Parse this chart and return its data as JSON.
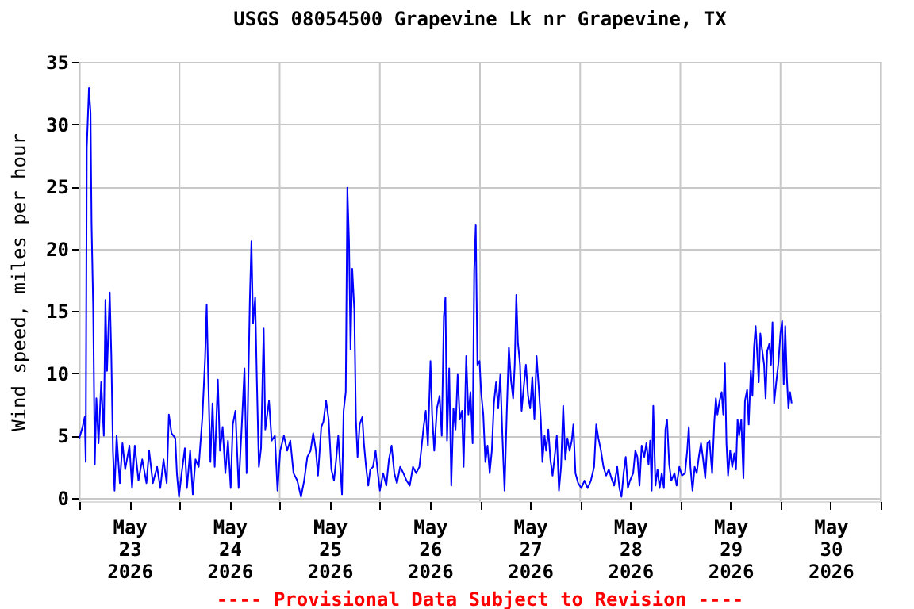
{
  "chart_data": {
    "type": "line",
    "title": "USGS 08054500 Grapevine Lk nr Grapevine, TX",
    "ylabel": "Wind speed, miles per hour",
    "annotations": [
      "---- Provisional Data Subject to Revision ----"
    ],
    "xlim": [
      "2026-05-23T00:00",
      "2026-05-31T00:00"
    ],
    "xticks": [
      {
        "value": "2026-05-23T00:00",
        "label": null
      },
      {
        "value": "2026-05-23T12:00",
        "label": "May 23 2026"
      },
      {
        "value": "2026-05-24T00:00",
        "label": null
      },
      {
        "value": "2026-05-24T12:00",
        "label": "May 24 2026"
      },
      {
        "value": "2026-05-25T00:00",
        "label": null
      },
      {
        "value": "2026-05-25T12:00",
        "label": "May 25 2026"
      },
      {
        "value": "2026-05-26T00:00",
        "label": null
      },
      {
        "value": "2026-05-26T12:00",
        "label": "May 26 2026"
      },
      {
        "value": "2026-05-27T00:00",
        "label": null
      },
      {
        "value": "2026-05-27T12:00",
        "label": "May 27 2026"
      },
      {
        "value": "2026-05-28T00:00",
        "label": null
      },
      {
        "value": "2026-05-28T12:00",
        "label": "May 28 2026"
      },
      {
        "value": "2026-05-29T00:00",
        "label": null
      },
      {
        "value": "2026-05-29T12:00",
        "label": "May 29 2026"
      },
      {
        "value": "2026-05-30T00:00",
        "label": null
      },
      {
        "value": "2026-05-30T12:00",
        "label": "May 30 2026"
      },
      {
        "value": "2026-05-31T00:00",
        "label": null
      }
    ],
    "ylim": [
      -0.25,
      35
    ],
    "yticks": [
      0,
      5,
      10,
      15,
      20,
      25,
      30,
      35
    ],
    "grid": true,
    "marker": "none",
    "line_style": "solid",
    "series": [
      {
        "color": "#0000ff",
        "x": [
          "2026-05-23T00:00",
          "2026-05-23T00:46",
          "2026-05-23T01:17",
          "2026-05-23T01:32",
          "2026-05-23T01:47",
          "2026-05-23T02:18",
          "2026-05-23T02:41",
          "2026-05-23T02:56",
          "2026-05-23T03:19",
          "2026-05-23T03:42",
          "2026-05-23T04:05",
          "2026-05-23T04:36",
          "2026-05-23T05:14",
          "2026-05-23T05:52",
          "2026-05-23T06:15",
          "2026-05-23T06:38",
          "2026-05-23T07:17",
          "2026-05-23T07:40",
          "2026-05-23T08:03",
          "2026-05-23T08:26",
          "2026-05-23T08:56",
          "2026-05-23T09:42",
          "2026-05-23T10:20",
          "2026-05-23T10:59",
          "2026-05-23T12:00",
          "2026-05-23T12:38",
          "2026-05-23T13:17",
          "2026-05-23T14:10",
          "2026-05-23T15:04",
          "2026-05-23T16:05",
          "2026-05-23T16:43",
          "2026-05-23T17:37",
          "2026-05-23T18:38",
          "2026-05-23T19:24",
          "2026-05-23T20:10",
          "2026-05-23T20:56",
          "2026-05-23T21:27",
          "2026-05-23T22:05",
          "2026-05-23T22:59",
          "2026-05-23T23:22",
          "2026-05-23T23:52",
          "2026-05-24T00:31",
          "2026-05-24T01:17",
          "2026-05-24T01:47",
          "2026-05-24T02:33",
          "2026-05-24T03:11",
          "2026-05-24T03:50",
          "2026-05-24T04:36",
          "2026-05-24T05:29",
          "2026-05-24T06:08",
          "2026-05-24T06:31",
          "2026-05-24T06:53",
          "2026-05-24T07:24",
          "2026-05-24T07:55",
          "2026-05-24T08:26",
          "2026-05-24T09:11",
          "2026-05-24T09:42",
          "2026-05-24T10:20",
          "2026-05-24T10:59",
          "2026-05-24T11:37",
          "2026-05-24T12:16",
          "2026-05-24T12:46",
          "2026-05-24T13:24",
          "2026-05-24T14:10",
          "2026-05-24T14:56",
          "2026-05-24T15:34",
          "2026-05-24T16:05",
          "2026-05-24T16:51",
          "2026-05-24T17:14",
          "2026-05-24T17:37",
          "2026-05-24T18:08",
          "2026-05-24T18:31",
          "2026-05-24T19:01",
          "2026-05-24T19:32",
          "2026-05-24T20:10",
          "2026-05-24T20:33",
          "2026-05-24T21:27",
          "2026-05-24T22:05",
          "2026-05-24T22:51",
          "2026-05-24T23:29",
          "2026-05-25T00:08",
          "2026-05-25T01:01",
          "2026-05-25T01:47",
          "2026-05-25T02:33",
          "2026-05-25T03:19",
          "2026-05-25T04:13",
          "2026-05-25T05:07",
          "2026-05-25T05:52",
          "2026-05-25T06:38",
          "2026-05-25T07:24",
          "2026-05-25T08:02",
          "2026-05-25T08:41",
          "2026-05-25T09:11",
          "2026-05-25T09:58",
          "2026-05-25T10:28",
          "2026-05-25T11:07",
          "2026-05-25T11:44",
          "2026-05-25T12:23",
          "2026-05-25T13:01",
          "2026-05-25T13:32",
          "2026-05-25T14:02",
          "2026-05-25T14:56",
          "2026-05-25T15:19",
          "2026-05-25T15:50",
          "2026-05-25T16:13",
          "2026-05-25T16:37",
          "2026-05-25T16:59",
          "2026-05-25T17:23",
          "2026-05-25T17:53",
          "2026-05-25T18:16",
          "2026-05-25T18:40",
          "2026-05-25T19:10",
          "2026-05-25T19:48",
          "2026-05-25T20:11",
          "2026-05-25T20:42",
          "2026-05-25T21:13",
          "2026-05-25T21:43",
          "2026-05-25T22:22",
          "2026-05-25T22:59",
          "2026-05-25T23:31",
          "2026-05-26T00:01",
          "2026-05-26T00:47",
          "2026-05-26T01:33",
          "2026-05-26T02:11",
          "2026-05-26T02:49",
          "2026-05-26T03:28",
          "2026-05-26T04:06",
          "2026-05-26T04:52",
          "2026-05-26T05:38",
          "2026-05-26T06:24",
          "2026-05-26T07:10",
          "2026-05-26T07:56",
          "2026-05-26T08:42",
          "2026-05-26T09:28",
          "2026-05-26T09:58",
          "2026-05-26T10:29",
          "2026-05-26T11:00",
          "2026-05-26T11:31",
          "2026-05-26T12:08",
          "2026-05-26T12:32",
          "2026-05-26T13:02",
          "2026-05-26T13:41",
          "2026-05-26T14:19",
          "2026-05-26T14:50",
          "2026-05-26T15:20",
          "2026-05-26T15:43",
          "2026-05-26T16:06",
          "2026-05-26T16:37",
          "2026-05-26T17:07",
          "2026-05-26T17:38",
          "2026-05-26T18:08",
          "2026-05-26T18:39",
          "2026-05-26T19:10",
          "2026-05-26T19:41",
          "2026-05-26T20:04",
          "2026-05-26T20:42",
          "2026-05-26T21:13",
          "2026-05-26T21:43",
          "2026-05-26T22:14",
          "2026-05-26T22:37",
          "2026-05-26T22:59",
          "2026-05-26T23:23",
          "2026-05-26T23:53",
          "2026-05-27T00:16",
          "2026-05-27T00:47",
          "2026-05-27T01:17",
          "2026-05-27T01:48",
          "2026-05-27T02:19",
          "2026-05-27T02:50",
          "2026-05-27T03:20",
          "2026-05-27T03:51",
          "2026-05-27T04:22",
          "2026-05-27T04:52",
          "2026-05-27T05:23",
          "2026-05-27T05:53",
          "2026-05-27T06:24",
          "2026-05-27T06:55",
          "2026-05-27T07:25",
          "2026-05-27T07:56",
          "2026-05-27T08:19",
          "2026-05-27T08:42",
          "2026-05-27T09:05",
          "2026-05-27T09:35",
          "2026-05-27T09:58",
          "2026-05-27T10:29",
          "2026-05-27T11:00",
          "2026-05-27T11:31",
          "2026-05-27T12:01",
          "2026-05-27T12:32",
          "2026-05-27T13:02",
          "2026-05-27T13:33",
          "2026-05-27T14:04",
          "2026-05-27T14:34",
          "2026-05-27T14:57",
          "2026-05-27T15:28",
          "2026-05-27T15:51",
          "2026-05-27T16:22",
          "2026-05-27T16:52",
          "2026-05-27T17:23",
          "2026-05-27T17:53",
          "2026-05-27T18:24",
          "2026-05-27T18:55",
          "2026-05-27T19:25",
          "2026-05-27T19:56",
          "2026-05-27T20:26",
          "2026-05-27T20:57",
          "2026-05-27T21:28",
          "2026-05-27T21:59",
          "2026-05-27T22:22",
          "2026-05-27T22:52",
          "2026-05-27T23:31",
          "2026-05-28T00:16",
          "2026-05-28T01:02",
          "2026-05-28T01:48",
          "2026-05-28T02:34",
          "2026-05-28T03:20",
          "2026-05-28T03:51",
          "2026-05-28T04:22",
          "2026-05-28T04:59",
          "2026-05-28T05:35",
          "2026-05-28T06:13",
          "2026-05-28T06:52",
          "2026-05-28T07:29",
          "2026-05-28T08:08",
          "2026-05-28T08:53",
          "2026-05-28T09:24",
          "2026-05-28T09:54",
          "2026-05-28T10:25",
          "2026-05-28T10:55",
          "2026-05-28T11:26",
          "2026-05-28T11:56",
          "2026-05-28T12:42",
          "2026-05-28T13:13",
          "2026-05-28T13:43",
          "2026-05-28T14:13",
          "2026-05-28T14:44",
          "2026-05-28T15:22",
          "2026-05-28T15:52",
          "2026-05-28T16:23",
          "2026-05-28T16:46",
          "2026-05-28T17:08",
          "2026-05-28T17:31",
          "2026-05-28T18:02",
          "2026-05-28T18:32",
          "2026-05-28T19:03",
          "2026-05-28T19:33",
          "2026-05-28T20:04",
          "2026-05-28T20:26",
          "2026-05-28T20:49",
          "2026-05-28T21:20",
          "2026-05-28T21:50",
          "2026-05-28T22:36",
          "2026-05-28T23:07",
          "2026-05-28T23:45",
          "2026-05-29T00:23",
          "2026-05-29T01:08",
          "2026-05-29T01:39",
          "2026-05-29T02:02",
          "2026-05-29T02:25",
          "2026-05-29T02:55",
          "2026-05-29T03:26",
          "2026-05-29T03:56",
          "2026-05-29T04:26",
          "2026-05-29T04:57",
          "2026-05-29T05:28",
          "2026-05-29T05:58",
          "2026-05-29T06:29",
          "2026-05-29T06:59",
          "2026-05-29T07:37",
          "2026-05-29T08:08",
          "2026-05-29T08:31",
          "2026-05-29T08:53",
          "2026-05-29T09:24",
          "2026-05-29T09:54",
          "2026-05-29T10:17",
          "2026-05-29T10:40",
          "2026-05-29T11:03",
          "2026-05-29T11:26",
          "2026-05-29T11:56",
          "2026-05-29T12:26",
          "2026-05-29T12:57",
          "2026-05-29T13:20",
          "2026-05-29T13:43",
          "2026-05-29T14:05",
          "2026-05-29T14:36",
          "2026-05-29T15:07",
          "2026-05-29T15:29",
          "2026-05-29T16:00",
          "2026-05-29T16:23",
          "2026-05-29T16:53",
          "2026-05-29T17:16",
          "2026-05-29T17:39",
          "2026-05-29T18:02",
          "2026-05-29T18:25",
          "2026-05-29T18:47",
          "2026-05-29T19:10",
          "2026-05-29T19:33",
          "2026-05-29T20:04",
          "2026-05-29T20:26",
          "2026-05-29T20:49",
          "2026-05-29T21:20",
          "2026-05-29T21:43",
          "2026-05-29T22:05",
          "2026-05-29T22:28",
          "2026-05-29T22:59",
          "2026-05-29T23:29",
          "2026-05-29T23:59",
          "2026-05-30T00:23",
          "2026-05-30T00:46",
          "2026-05-30T01:08",
          "2026-05-30T01:31",
          "2026-05-30T01:54",
          "2026-05-30T02:17",
          "2026-05-30T02:40"
        ],
        "values": [
          4.8,
          5.7,
          6.5,
          2.9,
          28.1,
          32.9,
          30.9,
          21.9,
          15.3,
          2.7,
          8.0,
          4.4,
          9.3,
          5.0,
          15.9,
          10.2,
          16.5,
          11.4,
          3.8,
          0.6,
          5.0,
          1.2,
          4.4,
          2.3,
          4.2,
          0.8,
          4.2,
          1.4,
          3.1,
          1.2,
          3.8,
          1.2,
          2.5,
          0.8,
          3.1,
          1.2,
          6.7,
          5.2,
          4.8,
          2.0,
          0.1,
          2.0,
          4.0,
          0.8,
          3.8,
          0.3,
          3.1,
          2.5,
          6.5,
          11.2,
          15.5,
          9.7,
          2.9,
          7.6,
          2.5,
          9.5,
          3.8,
          5.7,
          2.0,
          4.6,
          0.8,
          5.9,
          7.0,
          0.8,
          5.9,
          10.4,
          2.0,
          15.9,
          20.6,
          14.0,
          16.1,
          9.7,
          2.5,
          4.0,
          13.6,
          5.5,
          7.8,
          4.6,
          5.0,
          0.6,
          3.8,
          5.0,
          3.8,
          4.6,
          2.0,
          1.4,
          0.1,
          1.4,
          3.3,
          3.8,
          5.2,
          3.8,
          1.8,
          5.7,
          6.1,
          7.8,
          6.3,
          2.3,
          1.4,
          3.1,
          5.0,
          0.3,
          7.0,
          8.5,
          24.9,
          20.6,
          11.9,
          18.4,
          15.1,
          6.3,
          3.3,
          5.9,
          6.5,
          4.4,
          2.5,
          1.0,
          2.3,
          2.5,
          3.8,
          2.0,
          0.6,
          2.0,
          1.0,
          3.1,
          4.2,
          2.0,
          1.2,
          2.5,
          2.0,
          1.4,
          1.0,
          2.5,
          2.0,
          2.5,
          4.0,
          5.7,
          7.0,
          4.2,
          11.0,
          6.7,
          3.8,
          7.2,
          8.2,
          5.0,
          14.6,
          16.1,
          4.6,
          10.4,
          1.0,
          7.2,
          5.5,
          9.9,
          6.3,
          7.0,
          2.5,
          11.4,
          6.7,
          8.5,
          4.4,
          18.3,
          21.9,
          10.7,
          11.0,
          8.5,
          6.7,
          2.9,
          4.2,
          2.0,
          3.8,
          7.6,
          9.3,
          7.2,
          9.9,
          4.8,
          0.6,
          6.7,
          12.1,
          9.5,
          8.0,
          10.7,
          16.3,
          12.5,
          10.7,
          7.0,
          8.9,
          10.7,
          8.2,
          7.2,
          9.7,
          6.3,
          11.4,
          8.9,
          6.3,
          2.9,
          5.0,
          3.8,
          5.5,
          3.1,
          1.8,
          3.3,
          5.0,
          0.6,
          2.5,
          7.4,
          3.1,
          4.8,
          3.8,
          4.6,
          5.9,
          2.0,
          1.2,
          0.8,
          1.4,
          0.8,
          1.4,
          2.5,
          5.9,
          4.8,
          3.8,
          2.5,
          1.8,
          2.3,
          1.6,
          1.0,
          2.5,
          0.8,
          0.1,
          2.0,
          3.3,
          0.8,
          1.4,
          2.0,
          3.8,
          3.3,
          1.0,
          4.2,
          3.3,
          4.4,
          2.7,
          4.6,
          0.6,
          7.4,
          1.0,
          2.3,
          0.8,
          2.0,
          0.8,
          5.5,
          6.3,
          2.7,
          1.4,
          2.0,
          1.0,
          2.5,
          1.8,
          2.0,
          3.8,
          5.7,
          2.5,
          0.6,
          2.5,
          2.0,
          3.3,
          4.4,
          3.1,
          1.6,
          4.4,
          4.6,
          2.0,
          6.1,
          8.0,
          6.7,
          7.8,
          8.5,
          6.7,
          10.8,
          4.4,
          1.8,
          3.8,
          2.5,
          3.6,
          2.3,
          6.3,
          5.0,
          6.3,
          1.6,
          7.8,
          8.7,
          5.9,
          10.2,
          8.2,
          12.1,
          13.8,
          11.6,
          9.3,
          13.2,
          12.0,
          10.7,
          8.0,
          11.8,
          12.4,
          10.7,
          14.1,
          7.6,
          9.3,
          10.8,
          13.2,
          14.2,
          9.1,
          13.8,
          9.7,
          7.2,
          8.5,
          7.6
        ]
      }
    ]
  }
}
